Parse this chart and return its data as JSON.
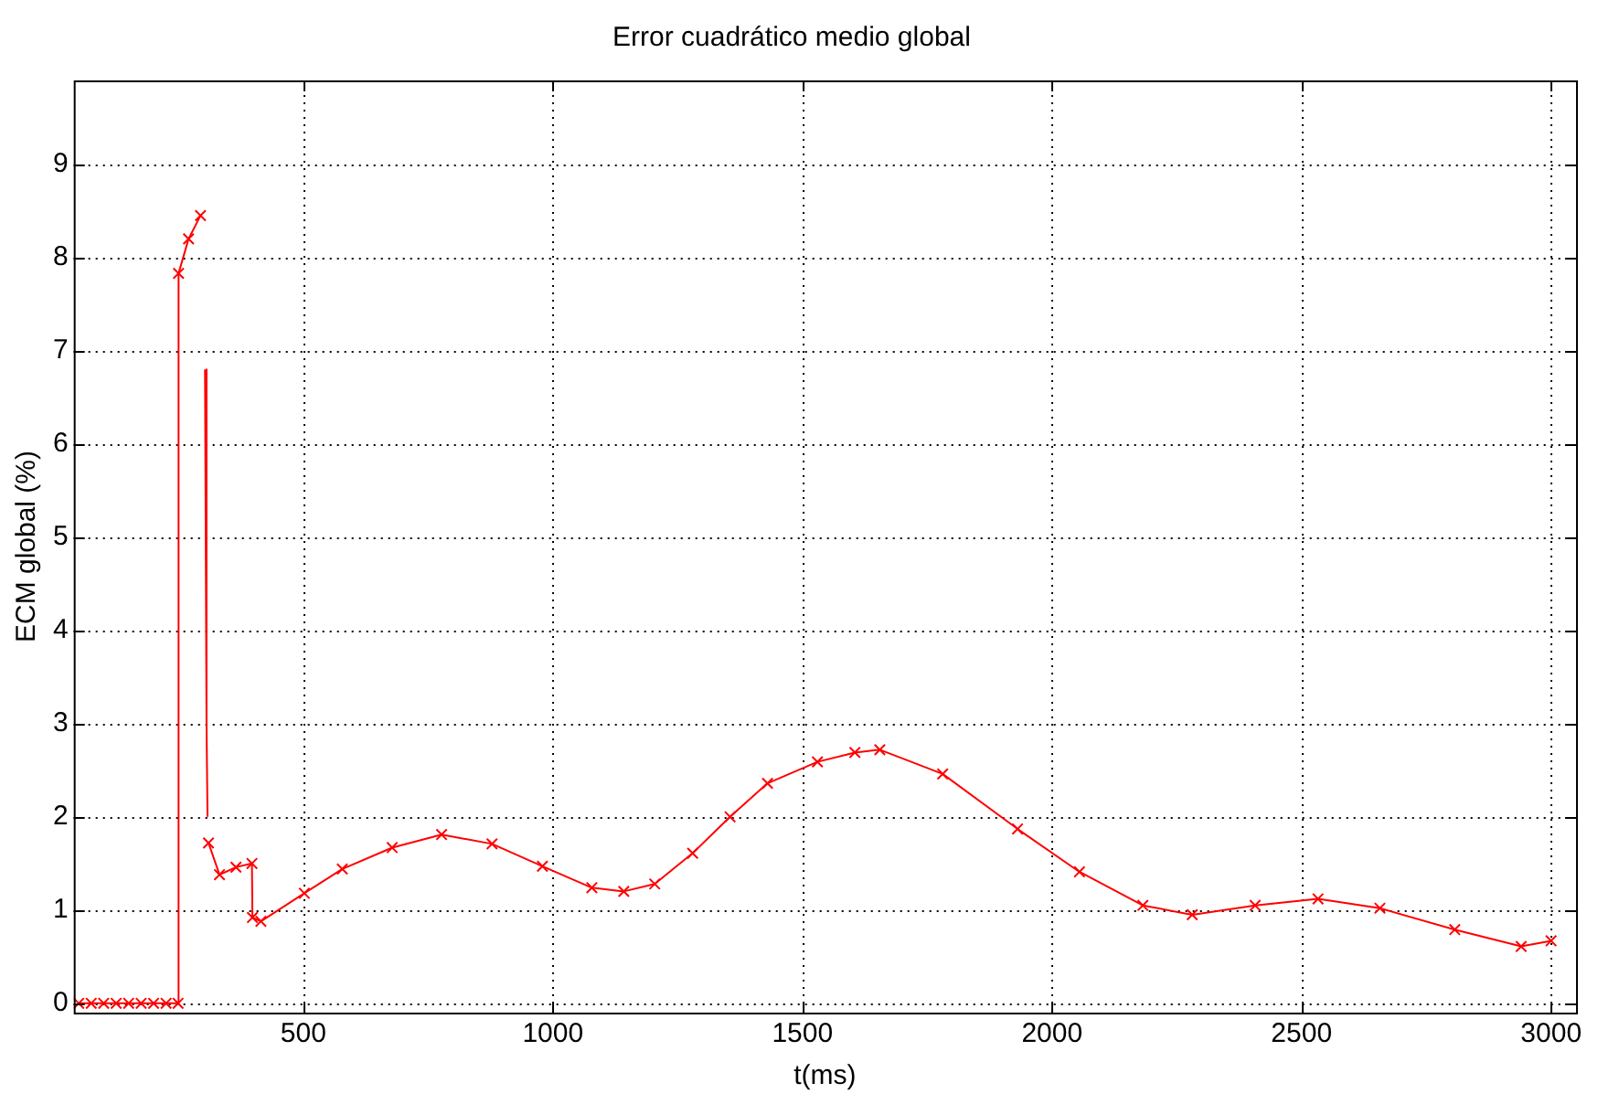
{
  "chart_data": {
    "type": "line",
    "title": "Error cuadrático medio global",
    "xlabel": "t(ms)",
    "ylabel": "ECM global (%)",
    "xlim": [
      40,
      3050
    ],
    "ylim": [
      -0.1,
      9.9
    ],
    "xticks": [
      500,
      1000,
      1500,
      2000,
      2500,
      3000
    ],
    "yticks": [
      0,
      1,
      2,
      3,
      4,
      5,
      6,
      7,
      8,
      9
    ],
    "grid": true,
    "legend": false,
    "series": [
      {
        "color": "#ff0000",
        "marker": "cross",
        "line_style": "solid",
        "x": [
          50,
          75,
          100,
          125,
          150,
          175,
          200,
          225,
          249,
          250,
          270,
          294
        ],
        "values": [
          0,
          0,
          0,
          0,
          0,
          0,
          0,
          0,
          0,
          7.83,
          8.2,
          8.45
        ]
      },
      {
        "color": "#ff0000",
        "marker": "none",
        "line_style": "solid",
        "x": [
          303,
          306,
          308
        ],
        "values": [
          6.8,
          3.0,
          2.0
        ]
      },
      {
        "color": "#ff0000",
        "marker": "cross",
        "line_style": "solid",
        "x": [
          310,
          332,
          365,
          397,
          398,
          415,
          502,
          578,
          678,
          777,
          878,
          979,
          1078,
          1142,
          1204,
          1280,
          1355,
          1430,
          1530,
          1605,
          1655,
          1781,
          1931,
          2055,
          2182,
          2281,
          2407,
          2533,
          2657,
          2807,
          2940,
          3000
        ],
        "values": [
          1.72,
          1.38,
          1.46,
          1.5,
          0.92,
          0.88,
          1.18,
          1.44,
          1.67,
          1.81,
          1.71,
          1.47,
          1.24,
          1.2,
          1.28,
          1.61,
          2.0,
          2.36,
          2.59,
          2.69,
          2.72,
          2.46,
          1.87,
          1.41,
          1.05,
          0.95,
          1.05,
          1.12,
          1.02,
          0.79,
          0.61,
          0.67
        ]
      }
    ]
  }
}
